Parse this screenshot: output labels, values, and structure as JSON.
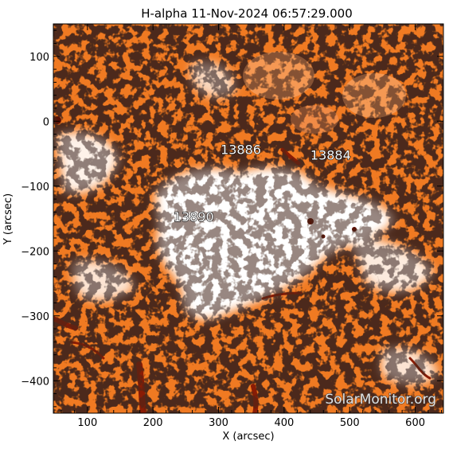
{
  "title": "H-alpha 11-Nov-2024 06:57:29.000",
  "xlabel": "X (arcsec)",
  "ylabel": "Y (arcsec)",
  "xlim": [
    48,
    643
  ],
  "ylim": [
    -450,
    150
  ],
  "xticks": [
    "100",
    "200",
    "300",
    "400",
    "500",
    "600"
  ],
  "yticks": [
    "100",
    "0",
    "−100",
    "−200",
    "−300",
    "−400"
  ],
  "regions": [
    {
      "label": "13886",
      "x": 334,
      "y": -43
    },
    {
      "label": "13884",
      "x": 471,
      "y": -52
    },
    {
      "label": "13890",
      "x": 262,
      "y": -147
    }
  ],
  "watermark": "SolarMonitor.org",
  "colors": {
    "chromosphere": "#f07a22",
    "dark_fibril": "#8a1c05",
    "saturated": "#ffffff",
    "speckle": "#1a0a04"
  }
}
